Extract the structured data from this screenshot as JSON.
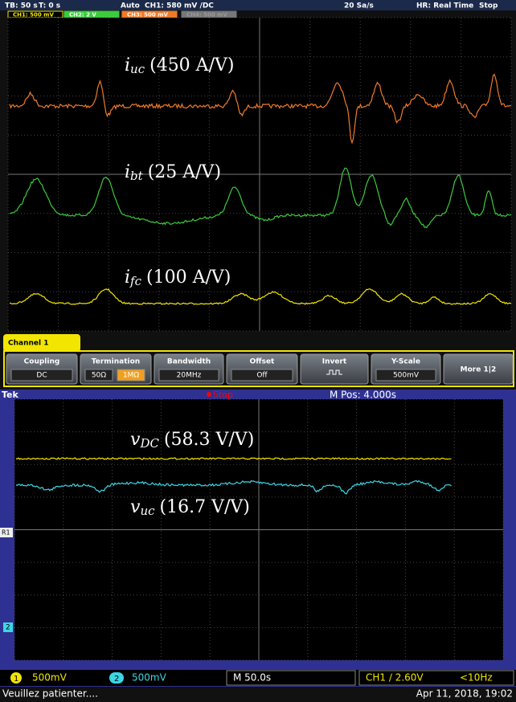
{
  "top_scope": {
    "status": {
      "timebase": "TB: 50 s",
      "trigger_time": "T: 0 s",
      "mode": "Auto",
      "trigger": "CH1: 580 mV ∕DC",
      "rate": "20 Sa/s",
      "acquisition": "HR: Real Time",
      "state": "Stop"
    },
    "tabs": [
      "CH1: 500 mV",
      "CH2: 2 V",
      "CH3: 500 mV",
      "CH4: 500 mV"
    ],
    "annotations": [
      {
        "var": "i",
        "sub": "uc",
        "scale": "(450 A/V)"
      },
      {
        "var": "i",
        "sub": "bt",
        "scale": "(25 A/V)"
      },
      {
        "var": "i",
        "sub": "fc",
        "scale": "(100 A/V)"
      }
    ],
    "menu": {
      "title": "Channel 1",
      "buttons": [
        {
          "label": "Coupling",
          "value": "DC"
        },
        {
          "label": "Termination",
          "options": [
            "50Ω",
            "1MΩ"
          ]
        },
        {
          "label": "Bandwidth",
          "value": "20MHz"
        },
        {
          "label": "Offset",
          "value": "Off"
        },
        {
          "label": "Invert"
        },
        {
          "label": "Y-Scale",
          "value": "500mV"
        },
        {
          "label": "More 1|2"
        }
      ]
    }
  },
  "bottom_scope": {
    "header": {
      "brand": "Tek",
      "state": "Stop",
      "position": "M Pos: 4.000s"
    },
    "annotations": [
      {
        "var": "v",
        "sub": "DC",
        "scale": "(58.3 V/V)"
      },
      {
        "var": "v",
        "sub": "uc",
        "scale": "(16.7 V/V)"
      }
    ],
    "markers": [
      "R1",
      "2"
    ],
    "footer": {
      "ch1": "1",
      "ch1_scale": "500mV",
      "ch2": "2",
      "ch2_scale": "500mV",
      "timebase": "M 50.0s",
      "trigger": "CH1 ∕ 2.60V",
      "frequency": "<10Hz",
      "message": "Veuillez patienter....",
      "datetime": "Apr 11, 2018, 19:02"
    }
  }
}
